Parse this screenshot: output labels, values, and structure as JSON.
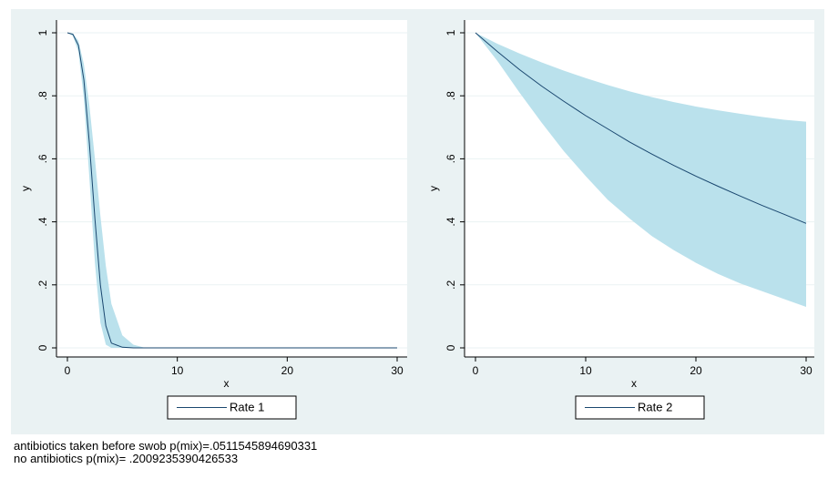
{
  "colors": {
    "graph_region": "#EAF2F3",
    "plot_region": "#FFFFFF",
    "band_fill": "#BAE1EC",
    "line": "#1A476F",
    "grid": "#EAF2F3",
    "legend_border": "#000000"
  },
  "chart_data": [
    {
      "type": "area",
      "xlabel": "x",
      "ylabel": "y",
      "xlim": [
        0,
        30
      ],
      "ylim": [
        0,
        1
      ],
      "x_ticks": [
        0,
        10,
        20,
        30
      ],
      "x_tick_labels": [
        "0",
        "10",
        "20",
        "30"
      ],
      "y_ticks": [
        0,
        0.2,
        0.4,
        0.6,
        0.8,
        1
      ],
      "y_tick_labels": [
        "0",
        ".2",
        ".4",
        ".6",
        ".8",
        "1"
      ],
      "grid": true,
      "legend_position": "bottom",
      "series": [
        {
          "name": "Rate 1",
          "x": [
            0,
            0.5,
            1,
            1.5,
            2,
            2.5,
            3,
            3.5,
            4,
            5,
            6,
            7,
            10,
            15,
            20,
            25,
            30
          ],
          "y": [
            1,
            0.995,
            0.96,
            0.85,
            0.65,
            0.41,
            0.2,
            0.07,
            0.015,
            0.002,
            0,
            0,
            0,
            0,
            0,
            0,
            0
          ],
          "lower": [
            1,
            0.99,
            0.94,
            0.79,
            0.54,
            0.27,
            0.08,
            0.01,
            0,
            0,
            0,
            0,
            0,
            0,
            0,
            0,
            0
          ],
          "upper": [
            1,
            0.998,
            0.975,
            0.9,
            0.77,
            0.6,
            0.42,
            0.26,
            0.14,
            0.04,
            0.01,
            0.001,
            0,
            0,
            0,
            0,
            0
          ]
        }
      ]
    },
    {
      "type": "area",
      "xlabel": "x",
      "ylabel": "y",
      "xlim": [
        0,
        30
      ],
      "ylim": [
        0,
        1
      ],
      "x_ticks": [
        0,
        10,
        20,
        30
      ],
      "x_tick_labels": [
        "0",
        "10",
        "20",
        "30"
      ],
      "y_ticks": [
        0,
        0.2,
        0.4,
        0.6,
        0.8,
        1
      ],
      "y_tick_labels": [
        "0",
        ".2",
        ".4",
        ".6",
        ".8",
        "1"
      ],
      "grid": true,
      "legend_position": "bottom",
      "series": [
        {
          "name": "Rate 2",
          "x": [
            0,
            2,
            4,
            6,
            8,
            10,
            12,
            14,
            16,
            18,
            20,
            22,
            24,
            26,
            28,
            30
          ],
          "y": [
            1,
            0.94,
            0.883,
            0.831,
            0.783,
            0.737,
            0.695,
            0.653,
            0.615,
            0.579,
            0.545,
            0.513,
            0.482,
            0.452,
            0.424,
            0.395
          ],
          "lower": [
            1,
            0.91,
            0.81,
            0.715,
            0.625,
            0.545,
            0.47,
            0.41,
            0.355,
            0.31,
            0.27,
            0.235,
            0.205,
            0.18,
            0.155,
            0.13
          ],
          "upper": [
            1,
            0.965,
            0.934,
            0.906,
            0.88,
            0.856,
            0.834,
            0.814,
            0.796,
            0.78,
            0.766,
            0.754,
            0.743,
            0.733,
            0.724,
            0.718
          ]
        }
      ]
    }
  ],
  "notes": [
    "antibiotics taken  before swob  p(mix)=.0511545894690331",
    "no antibiotics p(mix)= .2009235390426533"
  ]
}
